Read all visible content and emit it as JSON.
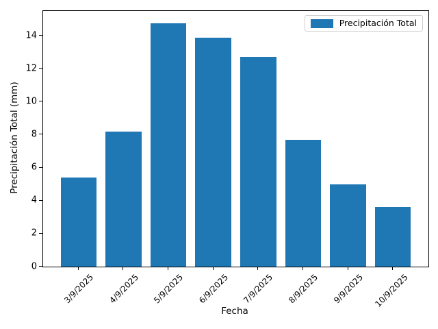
{
  "chart_data": {
    "type": "bar",
    "title": "",
    "xlabel": "Fecha",
    "ylabel": "Precipitación Total (mm)",
    "categories": [
      "3/9/2025",
      "4/9/2025",
      "5/9/2025",
      "6/9/2025",
      "7/9/2025",
      "8/9/2025",
      "9/9/2025",
      "10/9/2025"
    ],
    "values": [
      5.4,
      8.2,
      14.75,
      13.9,
      12.7,
      7.7,
      5.0,
      3.6
    ],
    "series_name": "Precipitación Total",
    "ylim": [
      0,
      15.5
    ],
    "yticks": [
      0,
      2,
      4,
      6,
      8,
      10,
      12,
      14
    ],
    "x_tick_rotation": 45,
    "grid": false,
    "bar_width_fraction": 0.8,
    "x_margin_fraction": 0.05,
    "colors": {
      "bar": "#1f77b4",
      "axis": "#000000",
      "text": "#000000",
      "legend_border": "#cccccc",
      "background": "#ffffff"
    },
    "legend": {
      "label": "Precipitación Total",
      "position": "upper right"
    }
  }
}
